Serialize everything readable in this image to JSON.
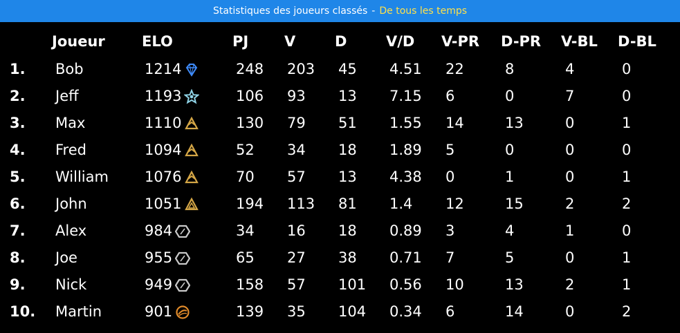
{
  "title": {
    "main": "Statistiques des joueurs classés",
    "separator": "-",
    "period": "De tous les temps"
  },
  "columns": [
    "Joueur",
    "ELO",
    "PJ",
    "V",
    "D",
    "V/D",
    "V-PR",
    "D-PR",
    "V-BL",
    "D-BL"
  ],
  "players": [
    {
      "rank": "1.",
      "name": "Bob",
      "elo": "1214",
      "tier_icon": "diamond-icon",
      "pj": "248",
      "v": "203",
      "d": "45",
      "vd": "4.51",
      "v_pr": "22",
      "d_pr": "8",
      "v_bl": "4",
      "d_bl": "0"
    },
    {
      "rank": "2.",
      "name": "Jeff",
      "elo": "1193",
      "tier_icon": "star-icon",
      "pj": "106",
      "v": "93",
      "d": "13",
      "vd": "7.15",
      "v_pr": "6",
      "d_pr": "0",
      "v_bl": "7",
      "d_bl": "0"
    },
    {
      "rank": "3.",
      "name": "Max",
      "elo": "1110",
      "tier_icon": "gold-stack-icon",
      "pj": "130",
      "v": "79",
      "d": "51",
      "vd": "1.55",
      "v_pr": "14",
      "d_pr": "13",
      "v_bl": "0",
      "d_bl": "1"
    },
    {
      "rank": "4.",
      "name": "Fred",
      "elo": "1094",
      "tier_icon": "gold-stack-icon",
      "pj": "52",
      "v": "34",
      "d": "18",
      "vd": "1.89",
      "v_pr": "5",
      "d_pr": "0",
      "v_bl": "0",
      "d_bl": "0"
    },
    {
      "rank": "5.",
      "name": "William",
      "elo": "1076",
      "tier_icon": "gold-stack-icon",
      "pj": "70",
      "v": "57",
      "d": "13",
      "vd": "4.38",
      "v_pr": "0",
      "d_pr": "1",
      "v_bl": "0",
      "d_bl": "1"
    },
    {
      "rank": "6.",
      "name": "John",
      "elo": "1051",
      "tier_icon": "gold-triangle-icon",
      "pj": "194",
      "v": "113",
      "d": "81",
      "vd": "1.4",
      "v_pr": "12",
      "d_pr": "15",
      "v_bl": "2",
      "d_bl": "2"
    },
    {
      "rank": "7.",
      "name": "Alex",
      "elo": "984",
      "tier_icon": "silver-hexagon-icon",
      "pj": "34",
      "v": "16",
      "d": "18",
      "vd": "0.89",
      "v_pr": "3",
      "d_pr": "4",
      "v_bl": "1",
      "d_bl": "0"
    },
    {
      "rank": "8.",
      "name": "Joe",
      "elo": "955",
      "tier_icon": "silver-hexagon-icon",
      "pj": "65",
      "v": "27",
      "d": "38",
      "vd": "0.71",
      "v_pr": "7",
      "d_pr": "5",
      "v_bl": "0",
      "d_bl": "1"
    },
    {
      "rank": "9.",
      "name": "Nick",
      "elo": "949",
      "tier_icon": "silver-hexagon-icon",
      "pj": "158",
      "v": "57",
      "d": "101",
      "vd": "0.56",
      "v_pr": "10",
      "d_pr": "13",
      "v_bl": "2",
      "d_bl": "1"
    },
    {
      "rank": "10.",
      "name": "Martin",
      "elo": "901",
      "tier_icon": "bronze-orb-icon",
      "pj": "139",
      "v": "35",
      "d": "104",
      "vd": "0.34",
      "v_pr": "6",
      "d_pr": "14",
      "v_bl": "0",
      "d_bl": "2"
    }
  ],
  "colors": {
    "titlebar_bg": "#1f86e8",
    "title_accent": "#ffe14a",
    "background": "#000000",
    "text": "#ffffff",
    "diamond": "#3f8cff",
    "star": "#8fd3e6",
    "gold": "#d4a646",
    "silver": "#c9c9c9",
    "bronze": "#e08a2a"
  }
}
